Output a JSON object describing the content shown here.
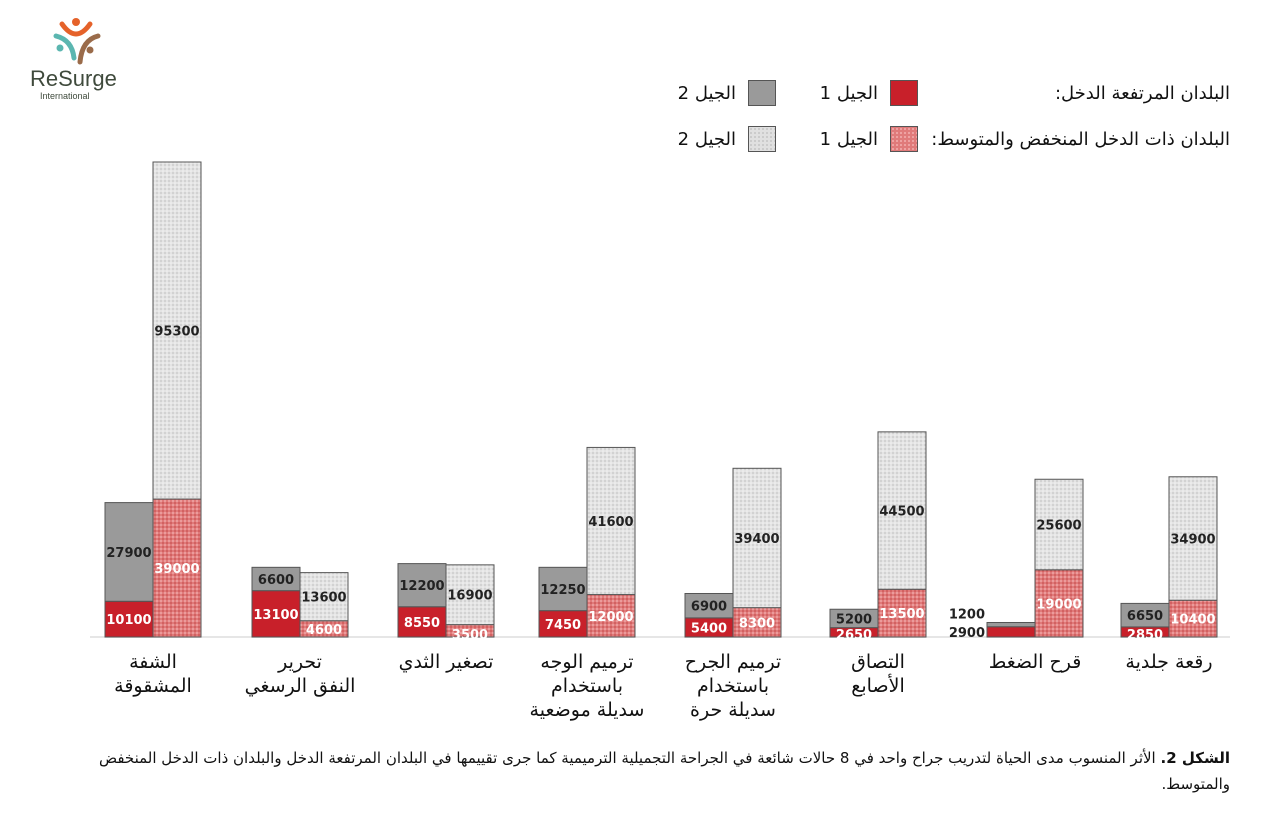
{
  "logo": {
    "name": "ReSurge",
    "subtitle": "International"
  },
  "colors": {
    "hic_gen1": "#c8202a",
    "hic_gen2": "#9a9a9a",
    "lmic_gen1": "#e07a7a",
    "lmic_gen2": "#e0e0e0"
  },
  "legend": {
    "hic_label": "البلدان المرتفعة الدخل:",
    "lmic_label": "البلدان ذات الدخل المنخفض والمتوسط:",
    "gen1": "الجيل 1",
    "gen2": "الجيل 2"
  },
  "chart_data": {
    "type": "bar",
    "stacked": true,
    "categories": [
      [
        "الشفة",
        "المشقوقة"
      ],
      [
        "تحرير",
        "النفق الرسغي"
      ],
      [
        "تصغير الثدي"
      ],
      [
        "ترميم الوجه",
        "باستخدام",
        "سديلة موضعية"
      ],
      [
        "ترميم الجرح",
        "باستخدام",
        "سديلة حرة"
      ],
      [
        "التصاق",
        "الأصابع"
      ],
      [
        "قرح الضغط"
      ],
      [
        "رقعة جلدية"
      ]
    ],
    "series": [
      {
        "name": "البلدان المرتفعة الدخل: الجيل 1",
        "group": "hic",
        "values": [
          10100,
          13100,
          8550,
          7450,
          5400,
          2650,
          2900,
          2850
        ]
      },
      {
        "name": "البلدان المرتفعة الدخل: الجيل 2",
        "group": "hic",
        "values": [
          27900,
          6600,
          12200,
          12250,
          6900,
          5200,
          1200,
          6650
        ]
      },
      {
        "name": "البلدان ذات الدخل المنخفض والمتوسط: الجيل 1",
        "group": "lmic",
        "values": [
          39000,
          4600,
          3500,
          12000,
          8300,
          13500,
          19000,
          10400
        ]
      },
      {
        "name": "البلدان ذات الدخل المنخفض والمتوسط: الجيل 2",
        "group": "lmic",
        "values": [
          95300,
          13600,
          16900,
          41600,
          39400,
          44500,
          25600,
          34900
        ]
      }
    ],
    "ylim": [
      0,
      134300
    ],
    "grid": false,
    "legend_position": "top-right"
  },
  "caption": {
    "label": "الشكل 2.",
    "text": " الأثر المنسوب مدى الحياة لتدريب جراح واحد في 8 حالات شائعة في الجراحة التجميلية الترميمية كما جرى تقييمها في البلدان المرتفعة الدخل والبلدان ذات الدخل المنخفض والمتوسط."
  }
}
